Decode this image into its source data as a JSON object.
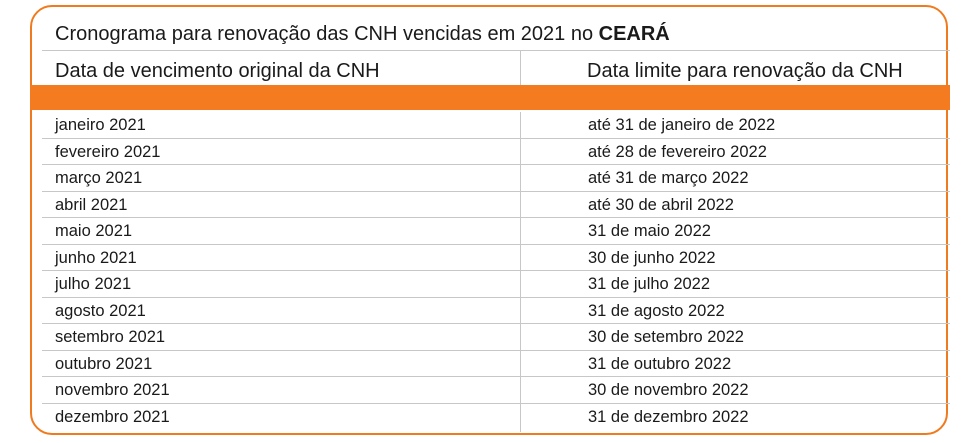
{
  "title": {
    "text": "Cronograma para renovação das CNH vencidas em 2021 no ",
    "state": "CEARÁ"
  },
  "headers": {
    "left": "Data de vencimento original da CNH",
    "right": "Data limite para renovação da CNH"
  },
  "colors": {
    "accent": "#f47b20",
    "border": "#f07a1e",
    "grid": "#c7c7c7"
  },
  "rows": [
    {
      "original": "janeiro 2021",
      "limit": "até 31 de janeiro de 2022"
    },
    {
      "original": "fevereiro 2021",
      "limit": "até 28 de fevereiro 2022"
    },
    {
      "original": "março 2021",
      "limit": "até 31 de março 2022"
    },
    {
      "original": "abril 2021",
      "limit": "até 30 de abril 2022"
    },
    {
      "original": "maio 2021",
      "limit": "31 de maio 2022"
    },
    {
      "original": "junho 2021",
      "limit": "30 de junho 2022"
    },
    {
      "original": "julho 2021",
      "limit": "31 de julho 2022"
    },
    {
      "original": "agosto 2021",
      "limit": "31 de agosto 2022"
    },
    {
      "original": "setembro 2021",
      "limit": "30 de setembro 2022"
    },
    {
      "original": "outubro 2021",
      "limit": "31 de outubro 2022"
    },
    {
      "original": "novembro 2021",
      "limit": "30 de novembro 2022"
    },
    {
      "original": "dezembro 2021",
      "limit": "31 de dezembro 2022"
    }
  ]
}
